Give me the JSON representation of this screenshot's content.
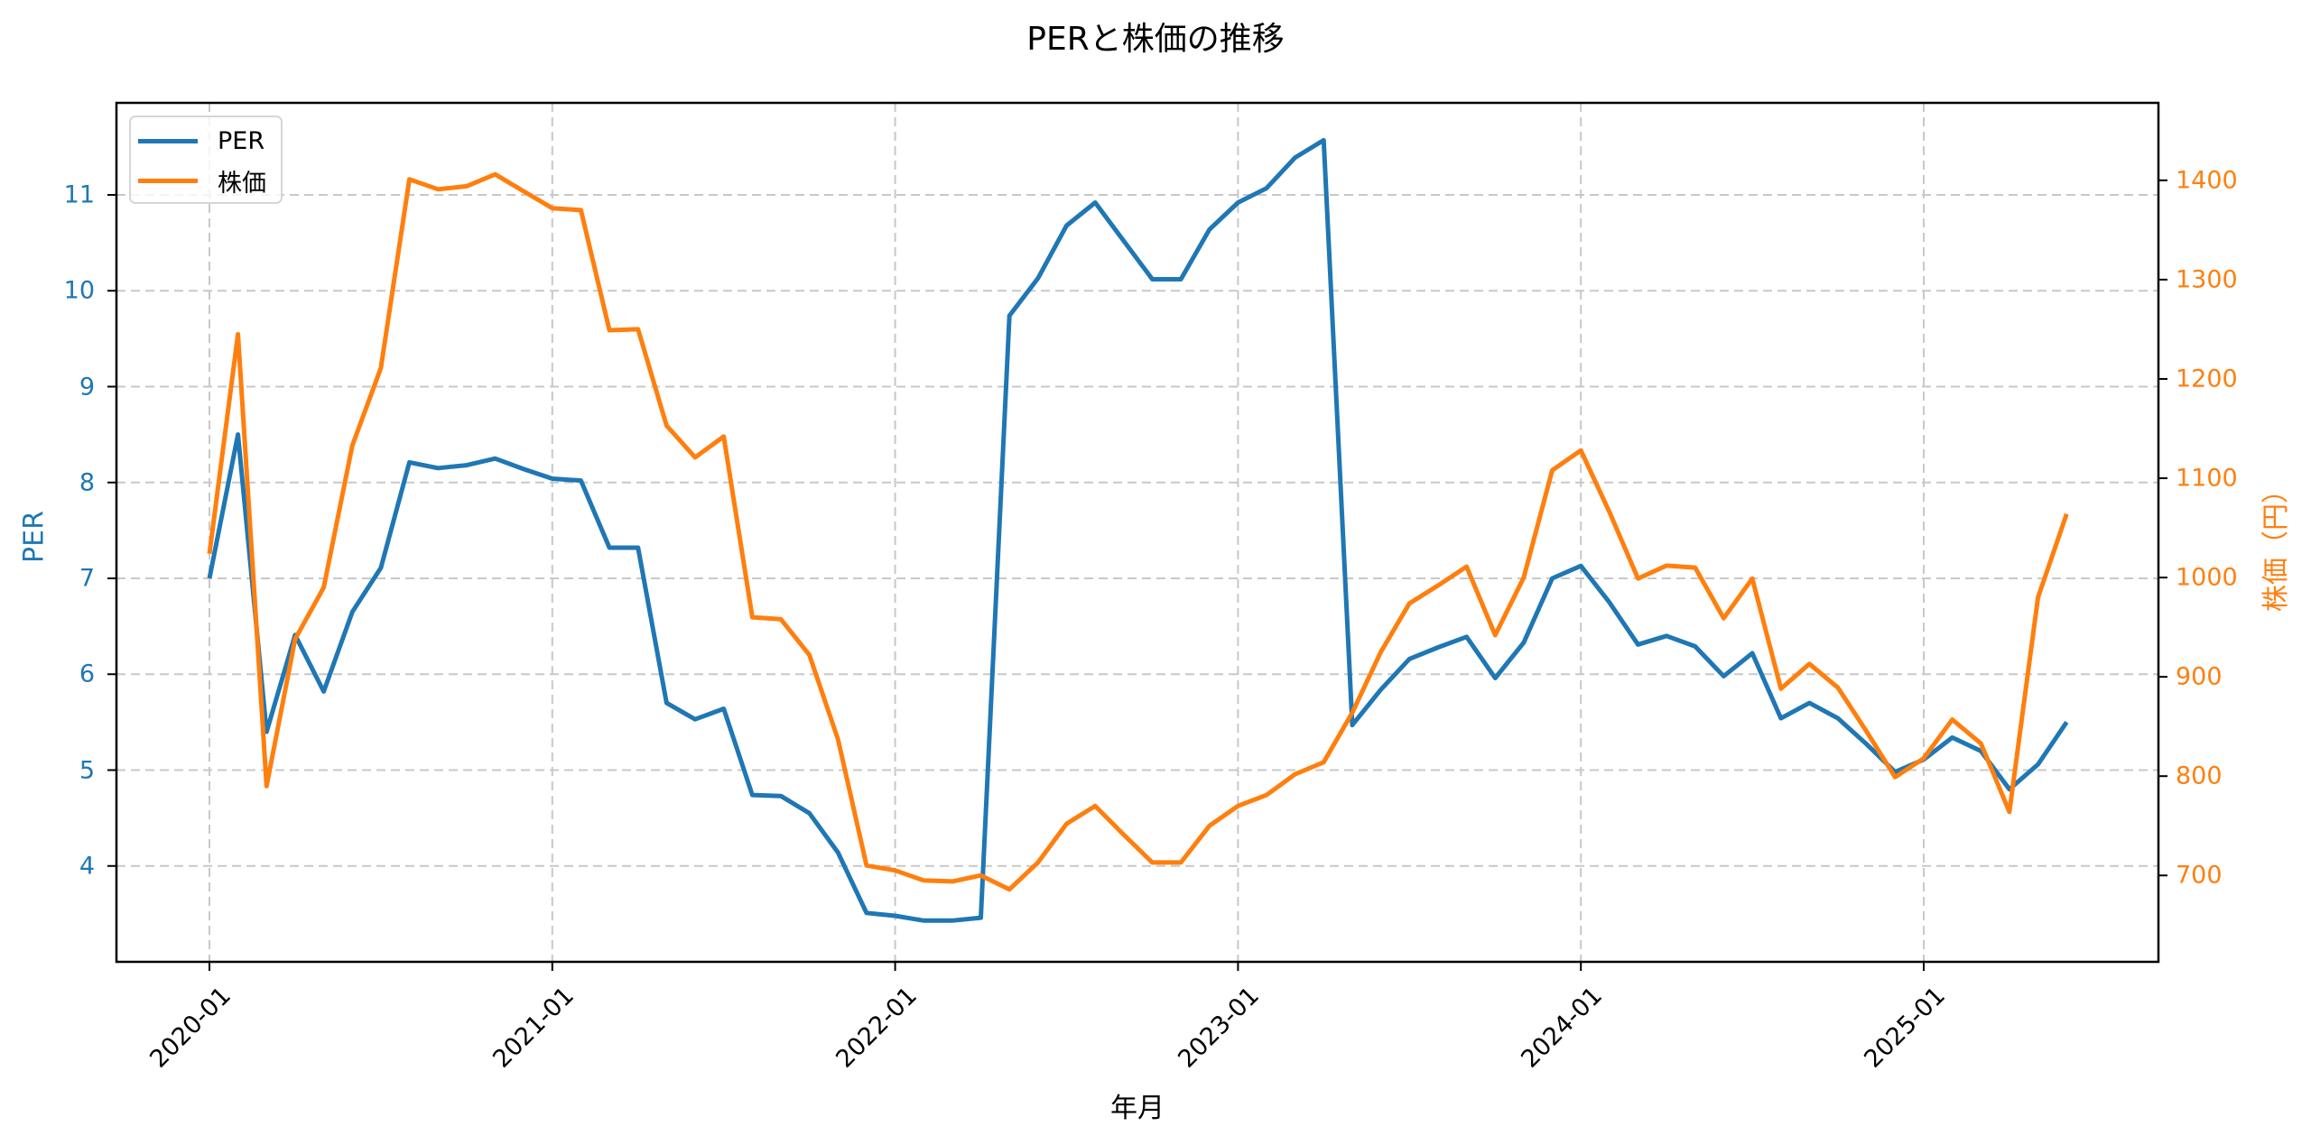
{
  "title": "PERと株価の推移",
  "chart_data": {
    "type": "line",
    "title": "PERと株価の推移",
    "xlabel": "年月",
    "ylabel": "PER",
    "ylabel_right": "株価（円）",
    "x_tick_labels": [
      "2020-01",
      "2021-01",
      "2022-01",
      "2023-01",
      "2024-01",
      "2025-01"
    ],
    "y_ticks_left": [
      4,
      5,
      6,
      7,
      8,
      9,
      10,
      11
    ],
    "y_ticks_right": [
      700,
      800,
      900,
      1000,
      1100,
      1200,
      1300,
      1400
    ],
    "ylim": [
      3.0,
      11.96
    ],
    "ylim_right": [
      613,
      1478
    ],
    "grid": true,
    "legend_position": "upper left",
    "x": [
      "2020-01",
      "2020-02",
      "2020-03",
      "2020-04",
      "2020-05",
      "2020-06",
      "2020-07",
      "2020-08",
      "2020-09",
      "2020-10",
      "2020-11",
      "2020-12",
      "2021-01",
      "2021-02",
      "2021-03",
      "2021-04",
      "2021-05",
      "2021-06",
      "2021-07",
      "2021-08",
      "2021-09",
      "2021-10",
      "2021-11",
      "2021-12",
      "2022-01",
      "2022-02",
      "2022-03",
      "2022-04",
      "2022-05",
      "2022-06",
      "2022-07",
      "2022-08",
      "2022-09",
      "2022-10",
      "2022-11",
      "2022-12",
      "2023-01",
      "2023-02",
      "2023-03",
      "2023-04",
      "2023-05",
      "2023-06",
      "2023-07",
      "2023-08",
      "2023-09",
      "2023-10",
      "2023-11",
      "2023-12",
      "2024-01",
      "2024-02",
      "2024-03",
      "2024-04",
      "2024-05",
      "2024-06",
      "2024-07",
      "2024-08",
      "2024-09",
      "2024-10",
      "2024-11",
      "2024-12",
      "2025-01",
      "2025-02",
      "2025-03",
      "2025-04",
      "2025-05",
      "2025-06"
    ],
    "series": [
      {
        "name": "PER",
        "axis": "left",
        "color": "#1f77b4",
        "values": [
          7.0,
          8.5,
          5.4,
          6.41,
          5.82,
          6.65,
          7.11,
          8.21,
          8.15,
          8.18,
          8.25,
          8.14,
          8.04,
          8.02,
          7.32,
          7.32,
          5.7,
          5.53,
          5.64,
          4.74,
          4.73,
          4.55,
          4.14,
          3.51,
          3.48,
          3.43,
          3.43,
          3.46,
          9.74,
          10.13,
          10.68,
          10.92,
          10.52,
          10.12,
          10.12,
          10.64,
          10.92,
          11.07,
          11.39,
          11.57,
          5.47,
          5.84,
          6.16,
          6.28,
          6.39,
          5.96,
          6.33,
          7.0,
          7.13,
          6.75,
          6.31,
          6.4,
          6.29,
          5.98,
          6.22,
          5.54,
          5.7,
          5.54,
          5.27,
          4.98,
          5.11,
          5.34,
          5.2,
          4.8,
          5.06,
          5.5
        ]
      },
      {
        "name": "株価",
        "axis": "right",
        "color": "#ff7f0e",
        "values": [
          1024,
          1245,
          790,
          938,
          990,
          1133,
          1211,
          1401,
          1391,
          1394,
          1406,
          1389,
          1372,
          1370,
          1249,
          1250,
          1153,
          1121,
          1142,
          960,
          958,
          922,
          837,
          710,
          705,
          695,
          694,
          700,
          686,
          713,
          752,
          770,
          741,
          713,
          713,
          750,
          770,
          781,
          802,
          814,
          864,
          925,
          974,
          992,
          1011,
          942,
          1000,
          1108,
          1128,
          1066,
          999,
          1012,
          1010,
          959,
          999,
          888,
          913,
          889,
          845,
          799,
          818,
          857,
          833,
          764,
          980,
          1064
        ]
      }
    ]
  },
  "legend": {
    "items": [
      {
        "label": "PER",
        "color": "#1f77b4"
      },
      {
        "label": "株価",
        "color": "#ff7f0e"
      }
    ]
  }
}
